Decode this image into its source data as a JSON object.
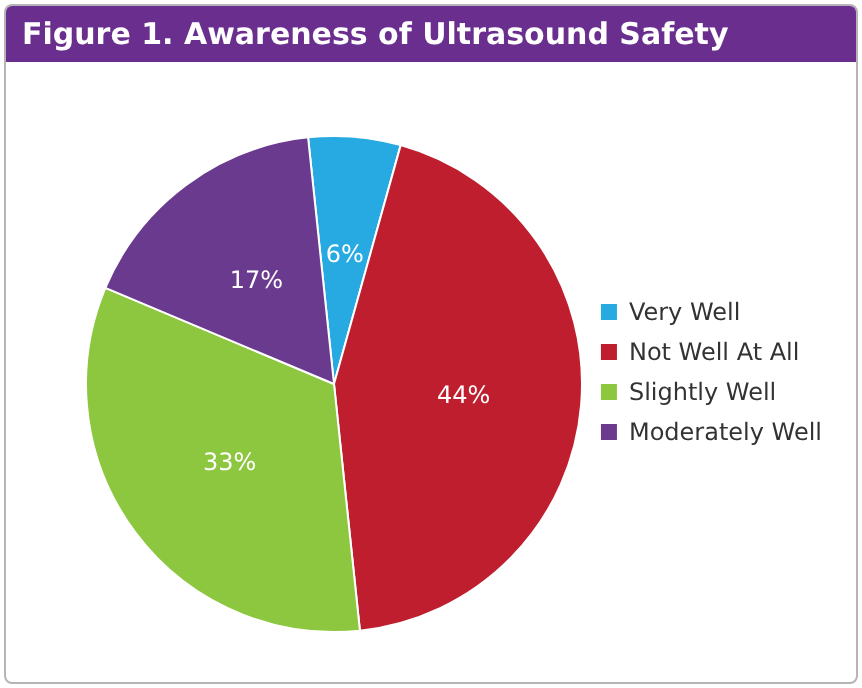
{
  "chart_data": {
    "type": "pie",
    "title": "Figure 1. Awareness of Ultrasound Safety",
    "categories": [
      "Very Well",
      "Not Well At All",
      "Slightly Well",
      "Moderately Well"
    ],
    "values": [
      6,
      44,
      33,
      17
    ],
    "value_labels": [
      "6%",
      "44%",
      "33%",
      "17%"
    ],
    "colors": [
      "#27aae1",
      "#be1e2d",
      "#8dc63f",
      "#6a3a8f"
    ],
    "legend": "right"
  }
}
